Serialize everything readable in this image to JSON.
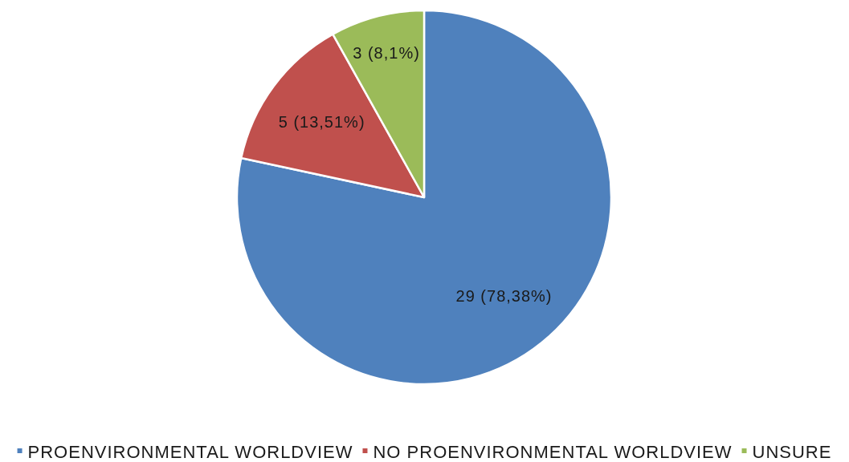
{
  "chart_data": {
    "type": "pie",
    "categories": [
      "PROENVIRONMENTAL WORLDVIEW",
      "NO PROENVIRONMENTAL WORLDVIEW",
      "UNSURE"
    ],
    "values": [
      29,
      5,
      3
    ],
    "colors": [
      "#4f81bd",
      "#c0504d",
      "#9bbb59"
    ],
    "value_labels": [
      "29 (78,38%)",
      "5 (13,51%)",
      "3 (8,1%)"
    ],
    "legend": "bottom"
  }
}
